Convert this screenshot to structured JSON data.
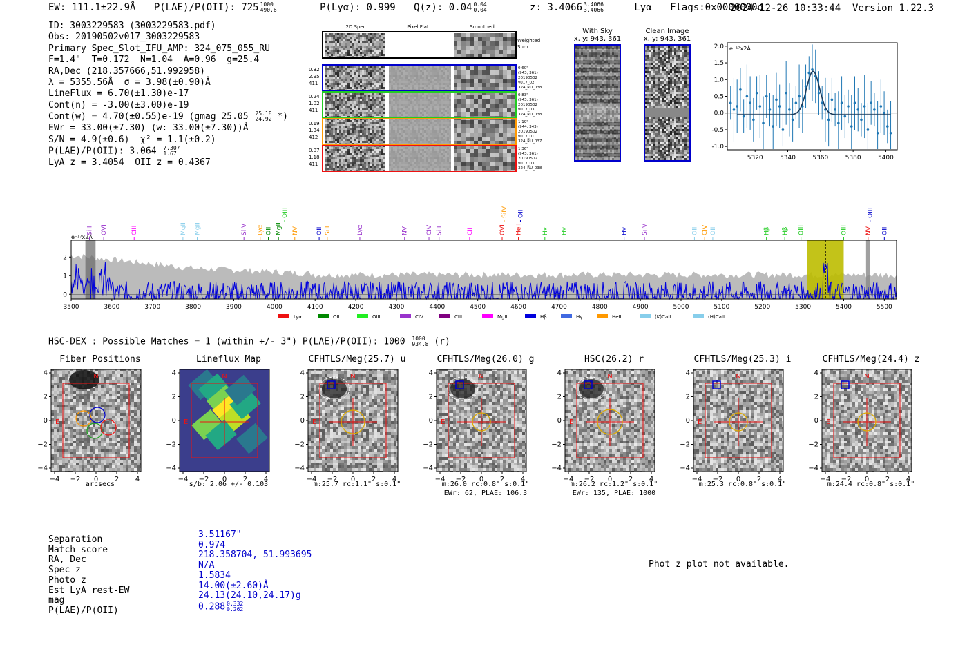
{
  "header": {
    "ew": "EW: 111.1±22.9Å",
    "plae_label": "P(LAE)/P(OII): 725",
    "plae_hi": "1000",
    "plae_lo": "490.6",
    "plya": "P(Lyα): 0.999",
    "qz_label": "Q(z): 0.04",
    "qz_hi": "0.04",
    "qz_lo": "0.04",
    "z_label": "z: 3.4066",
    "z_hi": "3.4066",
    "z_lo": "3.4066",
    "z_line": "Lyα",
    "flags": "Flags:0x0000000d",
    "datetime": "2024-12-26 10:33:44",
    "version": "Version 1.22.3"
  },
  "info": {
    "id": "ID: 3003229583 (3003229583.pdf)",
    "obs": "Obs: 20190502v017_3003229583",
    "primary": "Primary Spec_Slot_IFU_AMP: 324_075_055_RU",
    "params": "F=1.4\"  T=0.172  N=1.04  A=0.96  g=25.4",
    "radec": "RA,Dec (218.357666,51.992958)",
    "lambda": "λ = 5355.56Å  σ = 3.98(±0.90)Å",
    "lineflux": "LineFlux = 6.70(±1.30)e-17",
    "contn": "Cont(n) = -3.00(±3.00)e-19",
    "contw": "Cont(w) = 4.70(±0.55)e-19 (gmag 25.05",
    "contw_hi": "25.18",
    "contw_lo": "24.92",
    "contw_end": "*)",
    "ewr": "EWr = 33.00(±7.30) (w: 33.00(±7.30))Å",
    "sn": "S/N = 4.9(±0.6)  χ² = 1.1(±0.2)",
    "plae": "P(LAE)/P(OII): 3.064",
    "plae_hi": "7.307",
    "plae_lo": "1.67",
    "lya_z": "LyA z = 3.4054  OII z = 0.4367"
  },
  "spec2d": {
    "col_titles": [
      "2D Spec",
      "Pixel Flat",
      "Smoothed"
    ],
    "weighted_sum": "Weighted Sum",
    "rows": [
      {
        "left": [
          "0.32",
          "2.95",
          "411"
        ],
        "right": [
          "0.60\"",
          "(943, 361)",
          "20190502",
          "v017_02",
          "324_RU_038"
        ],
        "color": "#0000cc"
      },
      {
        "left": [
          "0.24",
          "1.02",
          "411"
        ],
        "right": [
          "0.83\"",
          "(943, 361)",
          "20190502",
          "v017_03",
          "324_RU_038"
        ],
        "color": "#22cc22"
      },
      {
        "left": [
          "0.19",
          "1.34",
          "412"
        ],
        "right": [
          "1.19\"",
          "(944, 343)",
          "20190502",
          "v017_01",
          "324_RU_037"
        ],
        "color": "#ff9900"
      },
      {
        "left": [
          "0.07",
          "1.18",
          "411"
        ],
        "right": [
          "1.36\"",
          "(943, 361)",
          "20190502",
          "v017_03",
          "324_RU_038"
        ],
        "color": "#ee1111"
      }
    ]
  },
  "sky": {
    "with_sky": "With Sky",
    "with_sky_xy": "x, y: 943, 361",
    "clean": "Clean Image",
    "clean_xy": "x, y: 943, 361"
  },
  "fit_plot": {
    "ylabel": "e⁻¹⁷x2Å",
    "xticks": [
      "5320",
      "5340",
      "5360",
      "5380",
      "5400"
    ],
    "yticks": [
      "2.0",
      "1.5",
      "1.0",
      "0.5",
      "0.0",
      "-0.5",
      "-1.0"
    ]
  },
  "chart_data": [
    {
      "type": "line",
      "title": "Emission line fit",
      "ylabel": "e⁻¹⁷x2Å",
      "xlim": [
        5303,
        5407
      ],
      "ylim": [
        -1.1,
        2.1
      ],
      "x": [
        5305,
        5307,
        5309,
        5311,
        5313,
        5315,
        5317,
        5319,
        5321,
        5323,
        5325,
        5327,
        5329,
        5331,
        5333,
        5335,
        5337,
        5339,
        5341,
        5343,
        5345,
        5347,
        5349,
        5351,
        5353,
        5355,
        5357,
        5359,
        5361,
        5363,
        5365,
        5367,
        5369,
        5371,
        5373,
        5375,
        5377,
        5379,
        5381,
        5383,
        5385,
        5387,
        5389,
        5391,
        5393,
        5395,
        5397,
        5399,
        5401,
        5403
      ],
      "y": [
        0.3,
        0.1,
        0.2,
        0.7,
        -0.1,
        0.5,
        0.3,
        -0.2,
        0.6,
        0.2,
        -0.3,
        0.5,
        0.1,
        -0.4,
        0.4,
        0.2,
        -0.5,
        0.6,
        0.1,
        -0.2,
        0.3,
        0.5,
        0.2,
        0.8,
        1.2,
        1.3,
        1.1,
        0.6,
        0.3,
        0.1,
        -0.2,
        0.4,
        0.1,
        -0.3,
        0.3,
        -0.1,
        0.2,
        -0.4,
        0.3,
        0.1,
        -0.2,
        0.2,
        -0.5,
        0.3,
        0.1,
        -0.6,
        0.2,
        0.0,
        -0.4,
        -0.6
      ],
      "fit": {
        "center": 5355.5,
        "sigma": 3.98,
        "amp": 1.3,
        "baseline": -0.05
      }
    },
    {
      "type": "line",
      "title": "Full spectrum",
      "ylabel": "e⁻¹⁷x2Å",
      "xlim": [
        3500,
        5530
      ],
      "ylim": [
        -0.25,
        2.9
      ],
      "xticks": [
        "3500",
        "3600",
        "3700",
        "3800",
        "3900",
        "4000",
        "4100",
        "4200",
        "4300",
        "4400",
        "4500",
        "4600",
        "4700",
        "4800",
        "4900",
        "5000",
        "5100",
        "5200",
        "5300",
        "5400",
        "5500"
      ],
      "yticks": [
        "2",
        "1",
        "0"
      ],
      "highlight_range": [
        5310,
        5400
      ],
      "highlight_line": 5355.5,
      "noise_seed": 7,
      "lines": [
        {
          "label": "SiII",
          "x": 3545,
          "color": "#9933cc",
          "tier": 1
        },
        {
          "label": "OVI",
          "x": 3580,
          "color": "#9933cc",
          "tier": 1
        },
        {
          "label": "CIII",
          "x": 3655,
          "color": "#ff00ff",
          "tier": 1
        },
        {
          "label": "MgII",
          "x": 3775,
          "color": "#87ceeb",
          "tier": 1
        },
        {
          "label": "MgII",
          "x": 3810,
          "color": "#87ceeb",
          "tier": 1
        },
        {
          "label": "SiIV",
          "x": 3925,
          "color": "#9933cc",
          "tier": 1
        },
        {
          "label": "Lyα",
          "x": 3965,
          "color": "#ff9900",
          "tier": 1
        },
        {
          "label": "OII",
          "x": 3985,
          "color": "#008800",
          "tier": 1
        },
        {
          "label": "MgII",
          "x": 4010,
          "color": "#008800",
          "tier": 1
        },
        {
          "label": "OIII",
          "x": 4025,
          "color": "#22cc22",
          "tier": 0
        },
        {
          "label": "NV",
          "x": 4050,
          "color": "#ff9900",
          "tier": 1
        },
        {
          "label": "OII",
          "x": 4110,
          "color": "#0000cc",
          "tier": 1
        },
        {
          "label": "SiII",
          "x": 4130,
          "color": "#ff9900",
          "tier": 1
        },
        {
          "label": "Lyα",
          "x": 4210,
          "color": "#9933cc",
          "tier": 1
        },
        {
          "label": "NV",
          "x": 4320,
          "color": "#9933cc",
          "tier": 1
        },
        {
          "label": "CIV",
          "x": 4380,
          "color": "#9933cc",
          "tier": 1
        },
        {
          "label": "SiII",
          "x": 4405,
          "color": "#9933cc",
          "tier": 1
        },
        {
          "label": "CII",
          "x": 4480,
          "color": "#ff00ff",
          "tier": 1
        },
        {
          "label": "OVI",
          "x": 4560,
          "color": "#ee1111",
          "tier": 1
        },
        {
          "label": "SiIV",
          "x": 4565,
          "color": "#ff9900",
          "tier": 0
        },
        {
          "label": "HeII",
          "x": 4600,
          "color": "#ee1111",
          "tier": 1
        },
        {
          "label": "OII",
          "x": 4605,
          "color": "#0000cc",
          "tier": 0
        },
        {
          "label": "Hγ",
          "x": 4665,
          "color": "#22cc22",
          "tier": 1
        },
        {
          "label": "Hγ",
          "x": 4712,
          "color": "#22cc22",
          "tier": 1
        },
        {
          "label": "Hγ",
          "x": 4860,
          "color": "#0000cc",
          "tier": 1
        },
        {
          "label": "SiIV",
          "x": 4910,
          "color": "#9933cc",
          "tier": 1
        },
        {
          "label": "OII",
          "x": 5033,
          "color": "#87ceeb",
          "tier": 1
        },
        {
          "label": "CIV",
          "x": 5058,
          "color": "#ff9900",
          "tier": 1
        },
        {
          "label": "OII",
          "x": 5078,
          "color": "#87ceeb",
          "tier": 1
        },
        {
          "label": "Hβ",
          "x": 5210,
          "color": "#22cc22",
          "tier": 1
        },
        {
          "label": "Hβ",
          "x": 5255,
          "color": "#22cc22",
          "tier": 1
        },
        {
          "label": "OIII",
          "x": 5295,
          "color": "#22cc22",
          "tier": 1
        },
        {
          "label": "OIII",
          "x": 5400,
          "color": "#22cc22",
          "tier": 1
        },
        {
          "label": "NV",
          "x": 5460,
          "color": "#ee1111",
          "tier": 1
        },
        {
          "label": "OIII",
          "x": 5465,
          "color": "#0000cc",
          "tier": 0
        },
        {
          "label": "OII",
          "x": 5500,
          "color": "#0000cc",
          "tier": 1
        }
      ],
      "legend": [
        {
          "label": "Lyα",
          "color": "#ee1111"
        },
        {
          "label": "OII",
          "color": "#008800"
        },
        {
          "label": "OIII",
          "color": "#22ee22"
        },
        {
          "label": "CIV",
          "color": "#9933cc"
        },
        {
          "label": "CIII",
          "color": "#800080"
        },
        {
          "label": "MgII",
          "color": "#ff00ff"
        },
        {
          "label": "Hβ",
          "color": "#0000dd"
        },
        {
          "label": "Hγ",
          "color": "#4169e1"
        },
        {
          "label": "HeII",
          "color": "#ff9900"
        },
        {
          "label": "(K)CaII",
          "color": "#87ceeb"
        },
        {
          "label": "(H)CaII",
          "color": "#87ceeb"
        }
      ]
    }
  ],
  "hsc": {
    "line": "HSC-DEX : Possible Matches = 1 (within +/- 3\")  P(LAE)/P(OII): 1000",
    "hi": "1000",
    "lo": "934.8",
    "end": "(r)"
  },
  "cutouts": [
    {
      "title": "Fiber Positions",
      "sub1": "arcsecs",
      "sub2": "",
      "kind": "fiber",
      "seed": 11
    },
    {
      "title": "Lineflux Map",
      "sub1": "s/b: 2.06 +/- 0.103",
      "sub2": "",
      "kind": "flux",
      "seed": 3
    },
    {
      "title": "CFHTLS/Meg(25.7) u",
      "sub1": "m:25.7 rc:1.1\"  s:0.1\"",
      "sub2": "",
      "kind": "img",
      "seed": 21
    },
    {
      "title": "CFHTLS/Meg(26.0) g",
      "sub1": "m:26.0 rc:0.8\"  s:0.1\"",
      "sub2": "EWr: 62, PLAE: 106.3",
      "kind": "img",
      "seed": 31
    },
    {
      "title": "HSC(26.2) r",
      "sub1": "m:26.2 rc:1.2\"  s:0.1\"",
      "sub2": "EWr: 135, PLAE: 1000",
      "kind": "img",
      "seed": 41
    },
    {
      "title": "CFHTLS/Meg(25.3) i",
      "sub1": "m:25.3 rc:0.8\"  s:0.1\"",
      "sub2": "",
      "kind": "img",
      "seed": 51
    },
    {
      "title": "CFHTLS/Meg(24.4) z",
      "sub1": "m:24.4 rc:0.8\"  s:0.1\"",
      "sub2": "",
      "kind": "img",
      "seed": 61
    }
  ],
  "cutout_axis": {
    "ticks": [
      "4",
      "2",
      "0",
      "−2",
      "−4"
    ],
    "xticks": [
      "−4",
      "−2",
      "0",
      "2",
      "4"
    ],
    "north": "N",
    "east": "E"
  },
  "match": {
    "labels": [
      "Separation",
      "Match score",
      "RA, Dec",
      "Spec z",
      "Photo z",
      "Est LyA rest-EW",
      "mag",
      "P(LAE)/P(OII)"
    ],
    "values": [
      "3.51167\"",
      "0.974",
      "218.358704, 51.993695",
      "N/A",
      "1.5834",
      "14.00(±2.60)Å",
      "24.13(24.10,24.17)g",
      "0.288"
    ],
    "plae_hi": "0.332",
    "plae_lo": "0.262"
  },
  "photz_msg": "Phot z plot not available."
}
